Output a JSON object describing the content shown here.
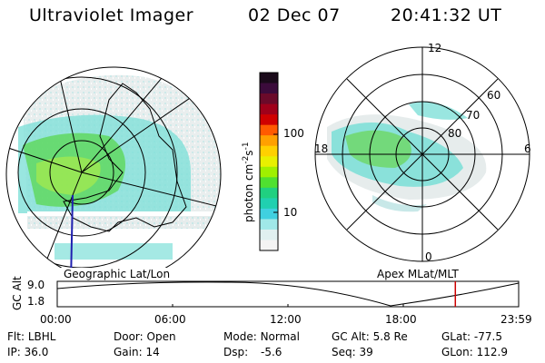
{
  "header": {
    "instrument": "Ultraviolet Imager",
    "date": "02 Dec 07",
    "time": "20:41:32 UT"
  },
  "left_map": {
    "label": "Geographic Lat/Lon"
  },
  "colorbar": {
    "unit_label": "photon cm",
    "unit_exp1": "-2",
    "unit_mid": "s",
    "unit_exp2": "-1",
    "tick_100": "100",
    "tick_10": "10",
    "colors": [
      "#1a0a1a",
      "#3b0b3b",
      "#6b0a2a",
      "#a0001a",
      "#d00000",
      "#ff5a00",
      "#ffa000",
      "#ffd000",
      "#e8f000",
      "#a0f000",
      "#50e030",
      "#20d080",
      "#20d0b0",
      "#40d0e0",
      "#a0e8e8",
      "#e0f0f0",
      "#f4f4f4"
    ]
  },
  "polar_plot": {
    "label": "Apex MLat/MLT",
    "mlt_12": "12",
    "mlt_18": "18",
    "mlt_6": "6",
    "mlt_0": "0",
    "lat_60": "60",
    "lat_70": "70",
    "lat_80": "80"
  },
  "altitude_plot": {
    "ylabel": "GC Alt",
    "ytick_top": "9.0",
    "ytick_bottom": "1.8",
    "xticks": [
      "00:00",
      "06:00",
      "12:00",
      "18:00",
      "23:59"
    ],
    "marker_color": "#cc0000"
  },
  "info": {
    "filter_label": "Flt:",
    "filter_value": "LBHL",
    "ip_label": "IP:",
    "ip_value": "36.0",
    "door_label": "Door:",
    "door_value": "Open",
    "gain_label": "Gain:",
    "gain_value": "14",
    "mode_label": "Mode:",
    "mode_value": "Normal",
    "dsp_label": "Dsp:",
    "dsp_value": "-5.6",
    "gcalt_label": "GC Alt:",
    "gcalt_value": "5.8 Re",
    "seq_label": "Seq:",
    "seq_value": "39",
    "glat_label": "GLat:",
    "glat_value": "-77.5",
    "glon_label": "GLon:",
    "glon_value": "112.9"
  }
}
